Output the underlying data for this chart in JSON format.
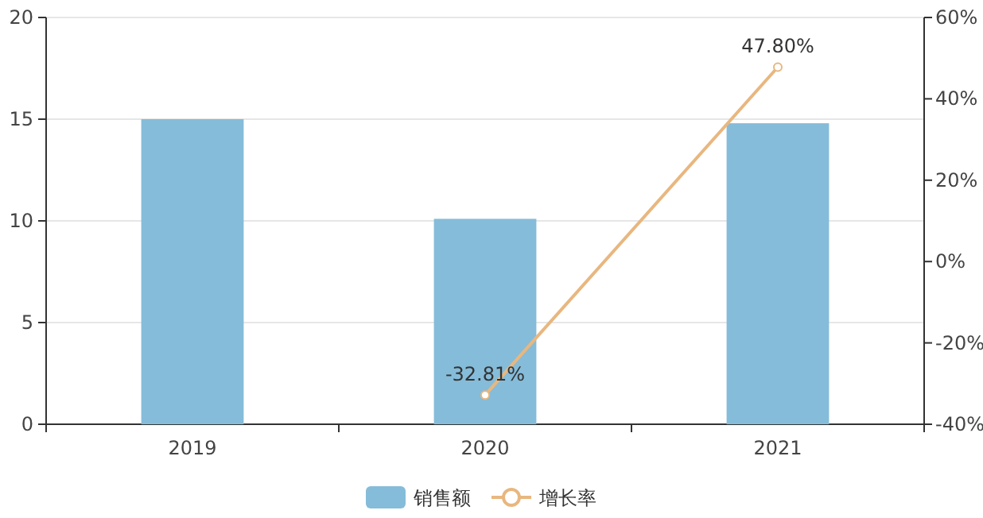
{
  "chart_data": {
    "type": "bar",
    "categories": [
      "2019",
      "2020",
      "2021"
    ],
    "series": [
      {
        "name": "销售额",
        "color": "#85bcd9",
        "values": [
          15,
          10.1,
          14.8
        ]
      },
      {
        "name": "增长率",
        "type": "line",
        "axis": "y2",
        "color": "#e8b77f",
        "values": [
          null,
          -32.81,
          47.8
        ],
        "value_labels": [
          null,
          "-32.81%",
          "47.80%"
        ]
      }
    ],
    "ylim": [
      0,
      20
    ],
    "yticks": [
      0,
      5,
      10,
      15,
      20
    ],
    "y2lim": [
      -40,
      60
    ],
    "y2ticks": [
      {
        "value": -40,
        "label": "-40%"
      },
      {
        "value": -20,
        "label": "-20%"
      },
      {
        "value": 0,
        "label": "0%"
      },
      {
        "value": 20,
        "label": "20%"
      },
      {
        "value": 40,
        "label": "40%"
      },
      {
        "value": 60,
        "label": "60%"
      }
    ],
    "grid": "y",
    "legend": "bottom",
    "marker": "circle"
  }
}
